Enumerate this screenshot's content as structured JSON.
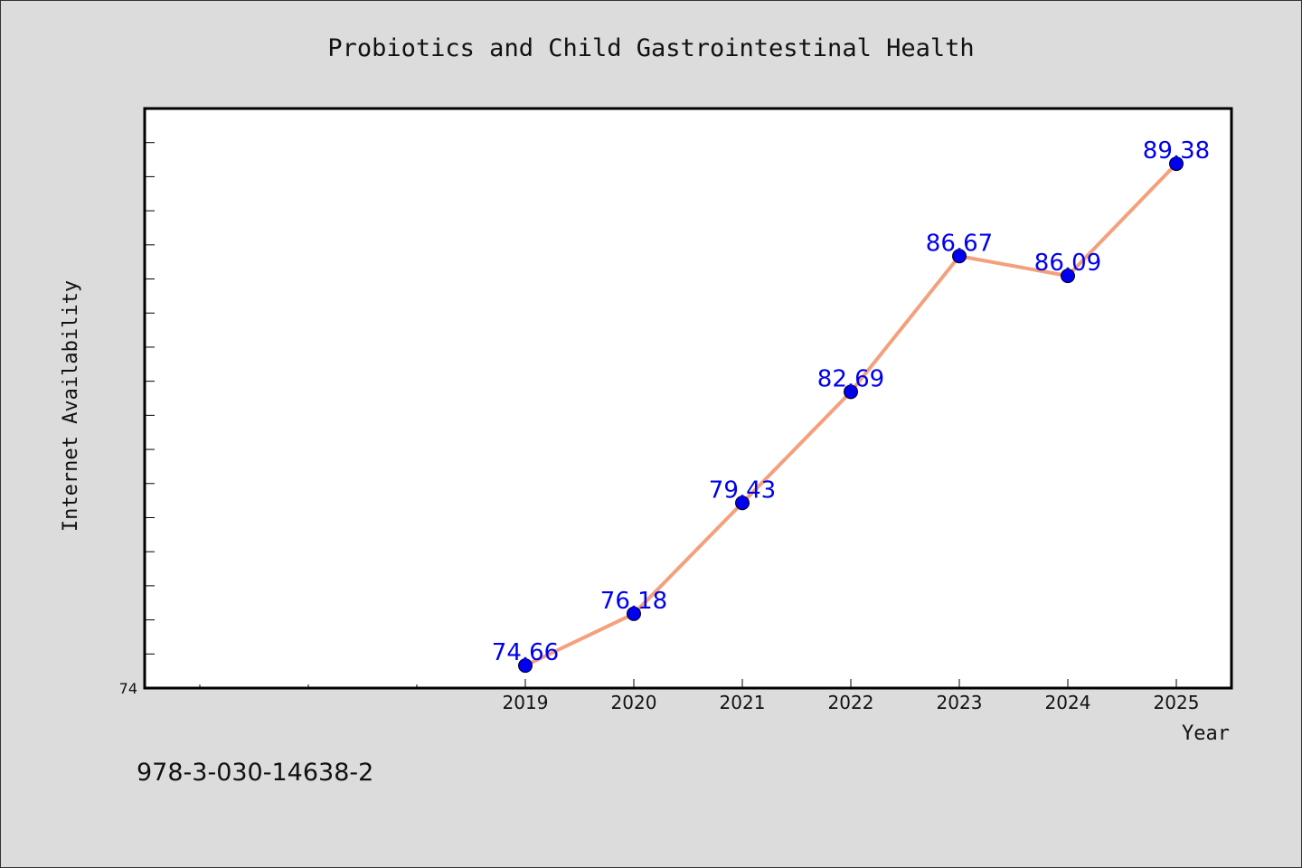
{
  "chart_data": {
    "type": "line",
    "title": "Probiotics and Child Gastrointestinal Health",
    "xlabel": "Year",
    "ylabel": "Internet Availability",
    "categories": [
      "2019",
      "2020",
      "2021",
      "2022",
      "2023",
      "2024",
      "2025"
    ],
    "x_slots": 10,
    "series": [
      {
        "values": [
          74.66,
          76.18,
          79.43,
          82.69,
          86.67,
          86.09,
          89.38
        ]
      }
    ],
    "data_labels": [
      "74.66",
      "76.18",
      "79.43",
      "82.69",
      "86.67",
      "86.09",
      "89.38"
    ],
    "y_min_label": "74",
    "ylim": [
      74,
      91
    ],
    "y_minor_step": 1,
    "grid": false,
    "legend": "none",
    "colors": {
      "line": "#f4a07c",
      "marker": "#0000ee",
      "label": "#0000ee",
      "frame": "#000000",
      "plot_bg": "#ffffff",
      "figure_bg": "#dcdcdc"
    }
  },
  "footnote": "978-3-030-14638-2"
}
